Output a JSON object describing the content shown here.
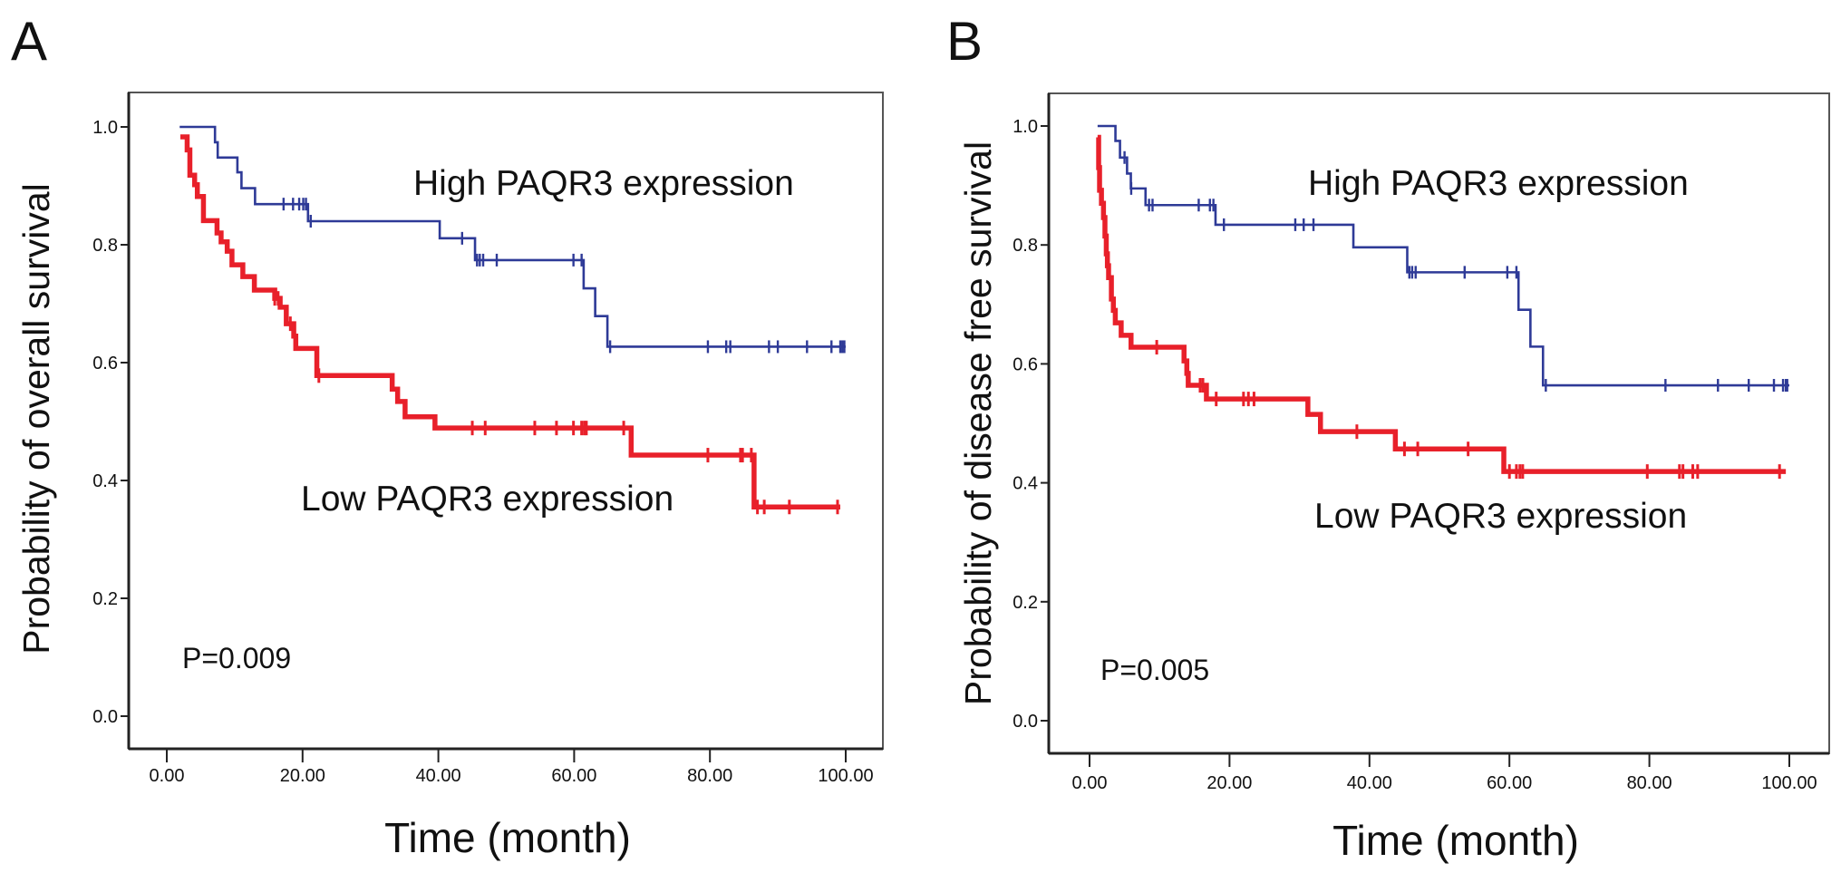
{
  "chart_data": [
    {
      "type": "line",
      "subtype": "kaplan-meier",
      "panel_label": "A",
      "xlabel": "Time (month)",
      "ylabel": "Probability of overall survival",
      "xlim": [
        0,
        100
      ],
      "ylim": [
        0,
        1
      ],
      "xticks": [
        "0.00",
        "20.00",
        "40.00",
        "60.00",
        "80.00",
        "100.00"
      ],
      "xtick_values": [
        0,
        20,
        40,
        60,
        80,
        100
      ],
      "yticks": [
        "0.0",
        "0.2",
        "0.4",
        "0.6",
        "0.8",
        "1.0"
      ],
      "ytick_values": [
        0,
        0.2,
        0.4,
        0.6,
        0.8,
        1.0
      ],
      "grid": false,
      "p_value": "P=0.009",
      "series": [
        {
          "name": "High PAQR3 expression",
          "color": "#2e3a97",
          "steps": [
            [
              1.9,
              1.0
            ],
            [
              7.1,
              0.974
            ],
            [
              7.5,
              0.948
            ],
            [
              10.4,
              0.923
            ],
            [
              11.0,
              0.896
            ],
            [
              13.0,
              0.869
            ],
            [
              20.8,
              0.84
            ],
            [
              40.2,
              0.811
            ],
            [
              45.4,
              0.774
            ],
            [
              61.4,
              0.726
            ],
            [
              63.1,
              0.679
            ],
            [
              64.9,
              0.627
            ]
          ],
          "end": 100,
          "censored": [
            17.2,
            18.6,
            19.5,
            20.1,
            20.5,
            21.2,
            43.5,
            45.7,
            46.1,
            46.6,
            48.6,
            59.9,
            61.1,
            65.3,
            79.7,
            82.4,
            83.0,
            88.7,
            90.0,
            94.3,
            97.9,
            99.2,
            99.5,
            99.8
          ]
        },
        {
          "name": "Low PAQR3 expression",
          "color": "#e8202a",
          "steps": [
            [
              2.0,
              0.983
            ],
            [
              3.0,
              0.961
            ],
            [
              3.4,
              0.918
            ],
            [
              4.1,
              0.902
            ],
            [
              4.5,
              0.882
            ],
            [
              5.4,
              0.841
            ],
            [
              7.4,
              0.82
            ],
            [
              8.0,
              0.805
            ],
            [
              8.9,
              0.789
            ],
            [
              9.6,
              0.766
            ],
            [
              11.2,
              0.746
            ],
            [
              12.9,
              0.723
            ],
            [
              15.9,
              0.709
            ],
            [
              16.7,
              0.694
            ],
            [
              17.6,
              0.666
            ],
            [
              18.7,
              0.645
            ],
            [
              19.0,
              0.624
            ],
            [
              22.1,
              0.578
            ],
            [
              33.2,
              0.555
            ],
            [
              34.0,
              0.534
            ],
            [
              35.1,
              0.508
            ],
            [
              39.5,
              0.489
            ],
            [
              68.4,
              0.443
            ],
            [
              86.5,
              0.355
            ]
          ],
          "end": 99.2,
          "censored": [
            15.9,
            16.4,
            18.2,
            22.4,
            45.0,
            46.9,
            54.2,
            57.4,
            59.9,
            61.1,
            61.5,
            61.8,
            67.3,
            79.7,
            84.5,
            84.8,
            86.1,
            87.0,
            88.0,
            91.7,
            98.8
          ]
        }
      ]
    },
    {
      "type": "line",
      "subtype": "kaplan-meier",
      "panel_label": "B",
      "xlabel": "Time (month)",
      "ylabel": "Probability of disease free survival",
      "xlim": [
        0,
        100
      ],
      "ylim": [
        0,
        1
      ],
      "xticks": [
        "0.00",
        "20.00",
        "40.00",
        "60.00",
        "80.00",
        "100.00"
      ],
      "xtick_values": [
        0,
        20,
        40,
        60,
        80,
        100
      ],
      "yticks": [
        "0.0",
        "0.2",
        "0.4",
        "0.6",
        "0.8",
        "1.0"
      ],
      "ytick_values": [
        0,
        0.2,
        0.4,
        0.6,
        0.8,
        1.0
      ],
      "grid": false,
      "p_value": "P=0.005",
      "series": [
        {
          "name": "High PAQR3 expression",
          "color": "#2e3a97",
          "steps": [
            [
              1.15,
              1.0
            ],
            [
              3.7,
              0.975
            ],
            [
              4.35,
              0.947
            ],
            [
              5.36,
              0.92
            ],
            [
              5.9,
              0.895
            ],
            [
              8.0,
              0.867
            ],
            [
              18.0,
              0.834
            ],
            [
              37.7,
              0.796
            ],
            [
              45.4,
              0.754
            ],
            [
              61.3,
              0.691
            ],
            [
              63.0,
              0.629
            ],
            [
              64.8,
              0.564
            ]
          ],
          "end": 100,
          "censored": [
            5.0,
            5.95,
            8.5,
            9.0,
            15.6,
            17.2,
            17.7,
            19.2,
            29.4,
            30.6,
            32.0,
            45.7,
            46.1,
            46.6,
            53.6,
            59.7,
            61.0,
            65.2,
            82.3,
            89.8,
            94.2,
            97.8,
            99.1,
            99.5,
            99.7
          ]
        },
        {
          "name": "Low PAQR3 expression",
          "color": "#e8202a",
          "steps": [
            [
              1.15,
              0.981
            ],
            [
              1.3,
              0.93
            ],
            [
              1.43,
              0.892
            ],
            [
              1.7,
              0.87
            ],
            [
              1.99,
              0.846
            ],
            [
              2.2,
              0.815
            ],
            [
              2.39,
              0.785
            ],
            [
              2.55,
              0.765
            ],
            [
              2.72,
              0.745
            ],
            [
              3.12,
              0.709
            ],
            [
              3.4,
              0.69
            ],
            [
              3.68,
              0.669
            ],
            [
              4.52,
              0.648
            ],
            [
              5.93,
              0.628
            ],
            [
              13.5,
              0.605
            ],
            [
              13.9,
              0.584
            ],
            [
              14.1,
              0.564
            ],
            [
              16.7,
              0.541
            ],
            [
              31.2,
              0.515
            ],
            [
              33.0,
              0.486
            ],
            [
              43.7,
              0.457
            ],
            [
              59.2,
              0.419
            ]
          ],
          "end": 99.5,
          "censored": [
            9.6,
            15.8,
            16.2,
            18.1,
            22.0,
            22.7,
            23.5,
            38.2,
            45.0,
            46.9,
            54.1,
            60.0,
            61.0,
            61.5,
            61.9,
            79.7,
            84.3,
            84.8,
            86.2,
            86.9,
            98.6
          ]
        }
      ]
    }
  ]
}
